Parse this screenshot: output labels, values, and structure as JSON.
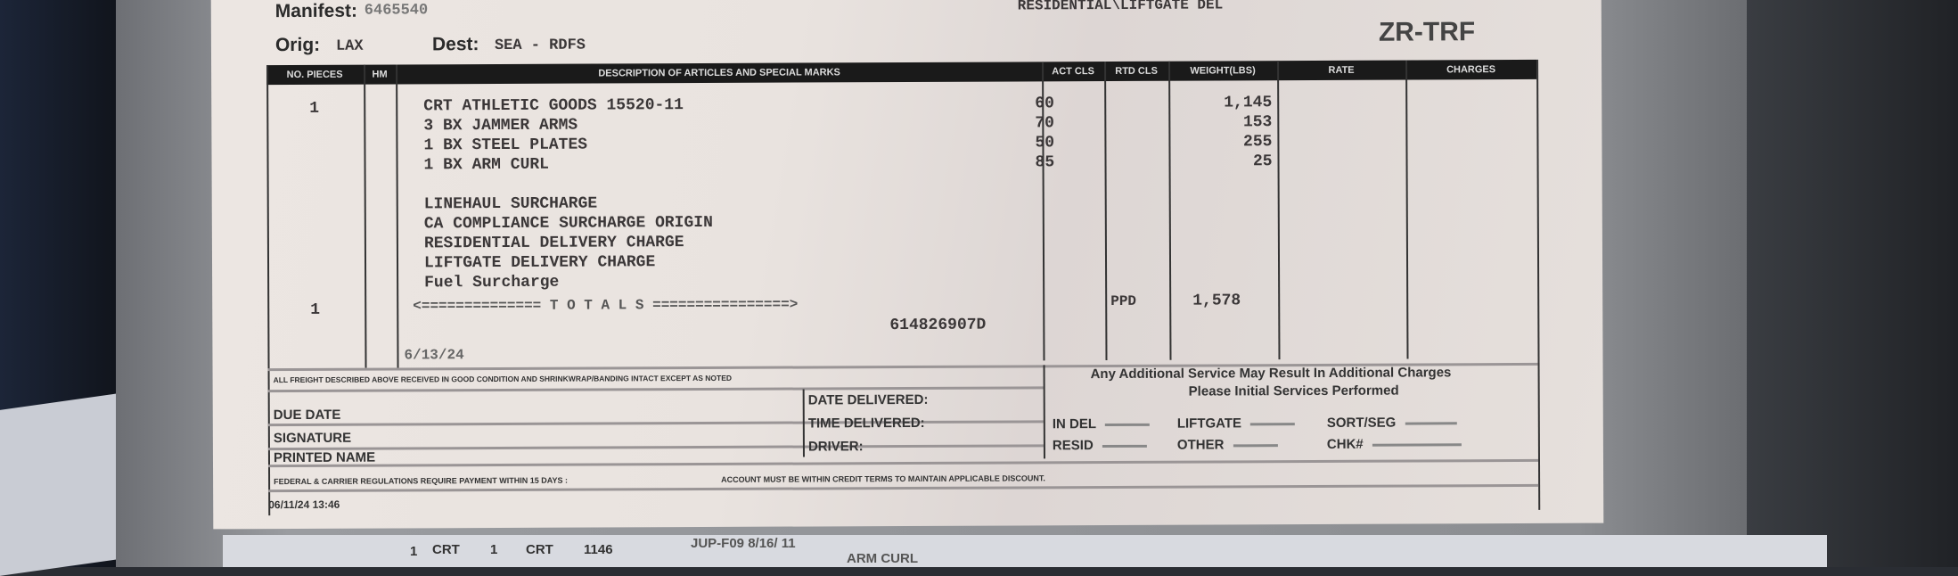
{
  "header": {
    "manifest_label": "Manifest:",
    "manifest_value": "6465540",
    "service": "RESIDENTIAL\\LIFTGATE DEL",
    "orig_label": "Orig:",
    "orig_value": "LAX",
    "dest_label": "Dest:",
    "dest_value": "SEA - RDFS",
    "code": "ZR-TRF"
  },
  "columns": [
    "NO. PIECES",
    "HM",
    "DESCRIPTION OF ARTICLES AND SPECIAL MARKS",
    "ACT CLS",
    "RTD CLS",
    "WEIGHT(LBS)",
    "RATE",
    "CHARGES"
  ],
  "items": [
    {
      "pieces": "1",
      "description": "CRT ATHLETIC GOODS 15520-11",
      "act_cls": "60",
      "weight": "1,145"
    },
    {
      "description": "3 BX JAMMER ARMS",
      "act_cls": "70",
      "weight": "153"
    },
    {
      "description": "1 BX STEEL PLATES",
      "act_cls": "50",
      "weight": "255"
    },
    {
      "description": "1 BX ARM CURL",
      "act_cls": "85",
      "weight": "25"
    }
  ],
  "surcharges": [
    "LINEHAUL SURCHARGE",
    "CA COMPLIANCE SURCHARGE ORIGIN",
    "RESIDENTIAL DELIVERY CHARGE",
    "LIFTGATE DELIVERY CHARGE",
    "Fuel Surcharge"
  ],
  "totals": {
    "pieces": "1",
    "label": "<============== T O T A L S ================>",
    "rtd_cls": "PPD",
    "weight": "1,578",
    "pro_number": "614826907D"
  },
  "footer": {
    "freight_notice": "ALL FREIGHT DESCRIBED ABOVE RECEIVED IN GOOD CONDITION AND SHRINKWRAP/BANDING INTACT EXCEPT AS NOTED",
    "stamped_date": "6/13/24",
    "due_date": "DUE DATE",
    "signature": "SIGNATURE",
    "printed_name": "PRINTED NAME",
    "date_delivered": "DATE DELIVERED:",
    "time_delivered": "TIME DELIVERED:",
    "driver": "DRIVER:",
    "notice_line1": "Any Additional Service May Result In Additional Charges",
    "notice_line2": "Please Initial Services Performed",
    "services": [
      "IN DEL",
      "LIFTGATE",
      "SORT/SEG",
      "RESID",
      "OTHER",
      "CHK#"
    ],
    "payment_terms": "FEDERAL & CARRIER REGULATIONS REQUIRE PAYMENT WITHIN 15 DAYS :",
    "credit_terms": "ACCOUNT MUST BE WITHIN CREDIT TERMS TO MAINTAIN APPLICABLE DISCOUNT.",
    "printed_at": "06/11/24  13:46"
  },
  "next_sheet": {
    "cells": [
      "1",
      "CRT",
      "1",
      "CRT",
      "1146"
    ],
    "desc": "JUP-F09 8/16/ 11",
    "desc2": "ARM CURL"
  }
}
